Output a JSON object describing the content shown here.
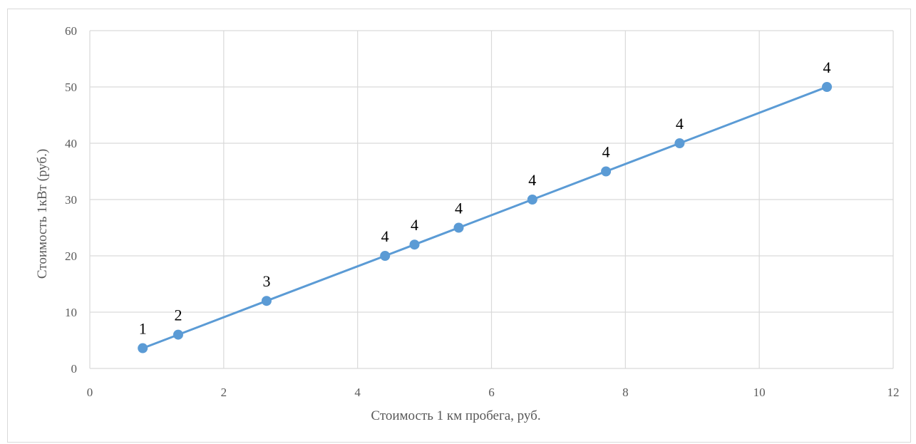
{
  "chart_data": {
    "type": "line",
    "title": "",
    "xlabel": "Стоимость 1 км пробега, руб.",
    "ylabel": "Стоимость 1кВт (руб.)",
    "xlim": [
      0,
      12
    ],
    "ylim": [
      0,
      60
    ],
    "x_ticks": [
      0,
      2,
      4,
      6,
      8,
      10,
      12
    ],
    "y_ticks": [
      0,
      10,
      20,
      30,
      40,
      50,
      60
    ],
    "grid": true,
    "legend": "none",
    "series": [
      {
        "color": "#5b9bd5",
        "markers": true,
        "x": [
          0.79,
          1.32,
          2.64,
          4.41,
          4.85,
          5.51,
          6.61,
          7.71,
          8.81,
          11.01
        ],
        "y": [
          3.6,
          6,
          12,
          20,
          22,
          25,
          30,
          35,
          40,
          50
        ],
        "data_labels": [
          "1",
          "2",
          "3",
          "4",
          "4",
          "4",
          "4",
          "4",
          "4",
          "4"
        ]
      }
    ],
    "colors": {
      "series_line": "#5b9bd5",
      "grid": "#d9d9d9",
      "tick_text": "#595959",
      "data_label_text": "#000000"
    }
  }
}
